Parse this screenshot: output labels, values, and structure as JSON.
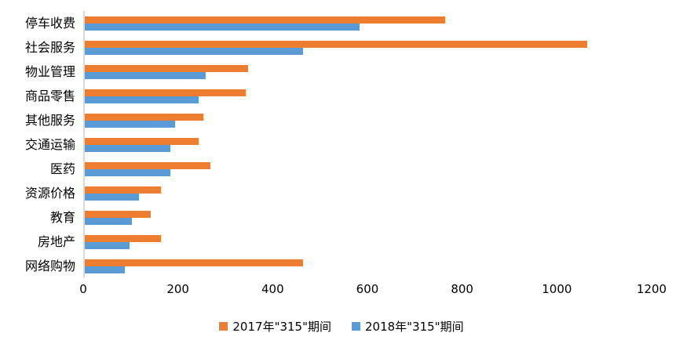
{
  "chart_data": {
    "type": "bar",
    "orientation": "horizontal",
    "title": "",
    "xlabel": "",
    "ylabel": "",
    "grid": false,
    "legend_position": "bottom-center",
    "axis_line_color": "#D9D9D9",
    "xlim": [
      0,
      1200
    ],
    "x_ticks": [
      0,
      200,
      400,
      600,
      800,
      1000,
      1200
    ],
    "categories": [
      "停车收费",
      "社会服务",
      "物业管理",
      "商品零售",
      "其他服务",
      "交通运输",
      "医药",
      "资源价格",
      "教育",
      "房地产",
      "网络购物"
    ],
    "series": [
      {
        "name": "2017年\"315\"期间",
        "color": "#ED7D31",
        "values": [
          760,
          1060,
          345,
          340,
          250,
          240,
          265,
          160,
          140,
          160,
          460
        ]
      },
      {
        "name": "2018年\"315\"期间",
        "color": "#5B9BD5",
        "values": [
          580,
          460,
          255,
          240,
          190,
          180,
          180,
          115,
          100,
          95,
          85
        ]
      }
    ]
  }
}
